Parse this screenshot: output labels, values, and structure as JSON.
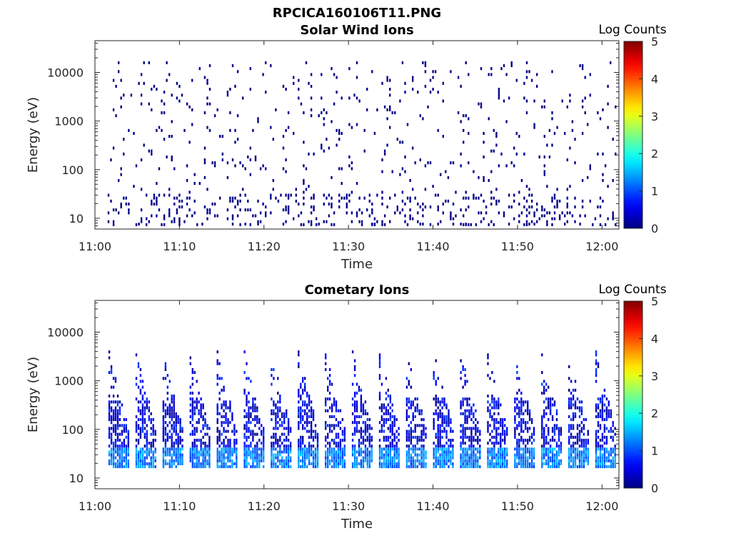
{
  "figure": {
    "filename": "RPCICA160106T11.PNG"
  },
  "chart_data": [
    {
      "type": "heatmap",
      "title": "Solar Wind Ions",
      "xlabel": "Time",
      "ylabel": "Energy (eV)",
      "x_ticks": [
        "11:00",
        "11:10",
        "11:20",
        "11:30",
        "11:40",
        "11:50",
        "12:00"
      ],
      "y_ticks": [
        "10",
        "100",
        "1000",
        "10000"
      ],
      "y_scale": "log",
      "ylim": [
        6,
        45000
      ],
      "xlim": [
        "11:00",
        "12:02"
      ],
      "colorbar": {
        "label": "Log Counts",
        "ticks": [
          "0",
          "1",
          "2",
          "3",
          "4",
          "5"
        ],
        "range": [
          0,
          5
        ],
        "colormap": "jet"
      },
      "pattern": "sparse low-count noise across all energies, denser near 10-30 eV",
      "max_log_counts": 0.3
    },
    {
      "type": "heatmap",
      "title": "Cometary Ions",
      "xlabel": "Time",
      "ylabel": "Energy (eV)",
      "x_ticks": [
        "11:00",
        "11:10",
        "11:20",
        "11:30",
        "11:40",
        "11:50",
        "12:00"
      ],
      "y_ticks": [
        "10",
        "100",
        "1000",
        "10000"
      ],
      "y_scale": "log",
      "ylim": [
        6,
        45000
      ],
      "xlim": [
        "11:00",
        "12:02"
      ],
      "colorbar": {
        "label": "Log Counts",
        "ticks": [
          "0",
          "1",
          "2",
          "3",
          "4",
          "5"
        ],
        "range": [
          0,
          5
        ],
        "colormap": "jet"
      },
      "pattern": "periodic energy-sweep signatures about every 3.2 minutes, 15-4000 eV",
      "burst_start_minutes": [
        1.6,
        4.8,
        8.0,
        11.2,
        14.4,
        17.6,
        20.8,
        24.0,
        27.2,
        30.4,
        33.6,
        36.8,
        40.0,
        43.2,
        46.4,
        49.6,
        52.8,
        56.0,
        59.2
      ],
      "max_log_counts": 1.6
    }
  ]
}
